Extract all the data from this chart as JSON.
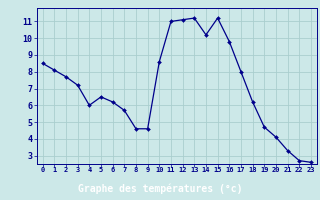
{
  "hours": [
    0,
    1,
    2,
    3,
    4,
    5,
    6,
    7,
    8,
    9,
    10,
    11,
    12,
    13,
    14,
    15,
    16,
    17,
    18,
    19,
    20,
    21,
    22,
    23
  ],
  "temperatures": [
    8.5,
    8.1,
    7.7,
    7.2,
    6.0,
    6.5,
    6.2,
    5.7,
    4.6,
    4.6,
    8.6,
    11.0,
    11.1,
    11.2,
    10.2,
    11.2,
    9.8,
    8.0,
    6.2,
    4.7,
    4.1,
    3.3,
    2.7,
    2.6
  ],
  "line_color": "#00008b",
  "marker_color": "#00008b",
  "bg_color": "#cce8e8",
  "grid_color": "#aacece",
  "axis_label_color": "#ffffff",
  "tick_color": "#00008b",
  "xlabel": "Graphe des températures (°c)",
  "xlabel_bg": "#00008b",
  "ylim": [
    2.5,
    11.8
  ],
  "yticks": [
    3,
    4,
    5,
    6,
    7,
    8,
    9,
    10,
    11
  ]
}
